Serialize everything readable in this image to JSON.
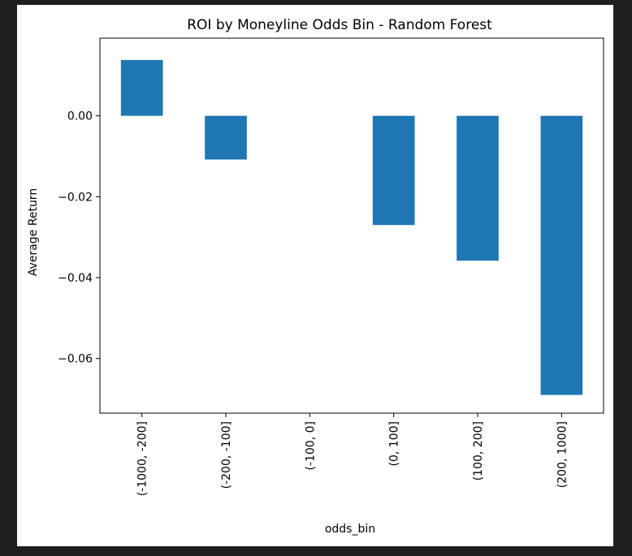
{
  "chart_data": {
    "type": "bar",
    "title": "ROI by Moneyline Odds Bin - Random Forest",
    "xlabel": "odds_bin",
    "ylabel": "Average Return",
    "categories": [
      "(-1000, -200]",
      "(-200, -100]",
      "(-100, 0]",
      "(0, 100]",
      "(100, 200]",
      "(200, 1000]"
    ],
    "values": [
      0.0138,
      -0.0108,
      null,
      -0.027,
      -0.0358,
      -0.069
    ],
    "ylim": [
      -0.0735,
      0.0192
    ],
    "yticks": [
      0.0,
      -0.02,
      -0.04,
      -0.06
    ],
    "ytick_labels": [
      "0.00",
      "−0.02",
      "−0.04",
      "−0.06"
    ],
    "bar_color": "#1f77b4",
    "grid": false
  }
}
